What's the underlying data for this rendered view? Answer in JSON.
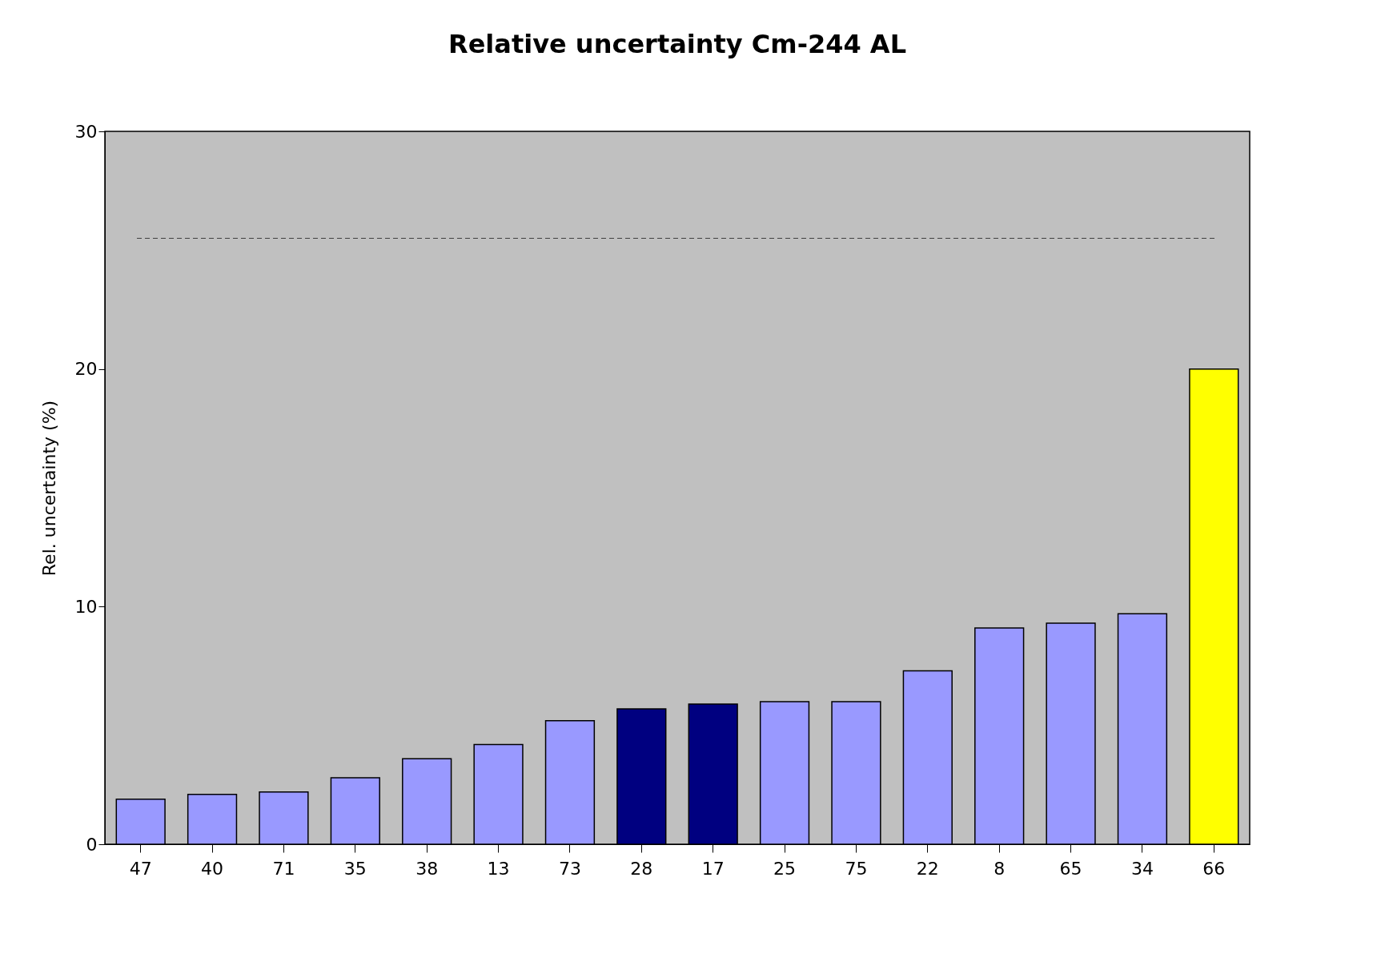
{
  "chart_data": {
    "type": "bar",
    "title": "Relative uncertainty Cm-244 AL",
    "ylabel": "Rel. uncertainty (%)",
    "categories": [
      "47",
      "40",
      "71",
      "35",
      "38",
      "13",
      "73",
      "28",
      "17",
      "25",
      "75",
      "22",
      "8",
      "65",
      "34",
      "66"
    ],
    "values": [
      1.9,
      2.1,
      2.2,
      2.8,
      3.6,
      4.2,
      5.2,
      5.7,
      5.9,
      6.0,
      6.0,
      7.3,
      9.1,
      9.3,
      9.7,
      20.0
    ],
    "colors": [
      "#9999ff",
      "#9999ff",
      "#9999ff",
      "#9999ff",
      "#9999ff",
      "#9999ff",
      "#9999ff",
      "#000080",
      "#000080",
      "#9999ff",
      "#9999ff",
      "#9999ff",
      "#9999ff",
      "#9999ff",
      "#9999ff",
      "#ffff00"
    ],
    "ylim": [
      0,
      30
    ],
    "yticks": [
      0,
      10,
      20,
      30
    ],
    "grid": false,
    "ref_lines": [
      {
        "axis": "y",
        "value": 25.5,
        "label": null,
        "color": "#404040",
        "line_style": "dashed"
      }
    ]
  }
}
